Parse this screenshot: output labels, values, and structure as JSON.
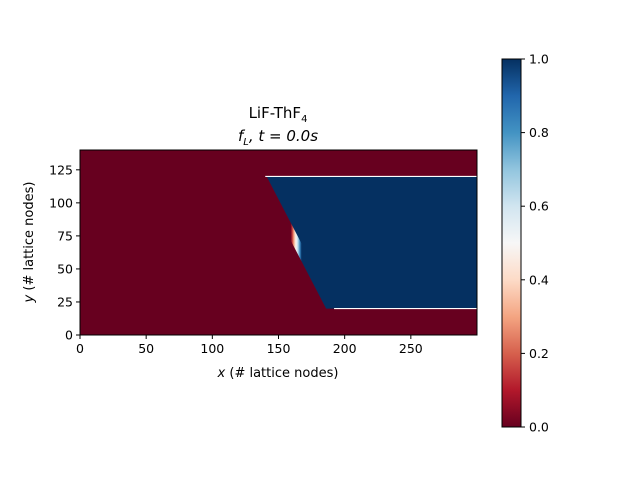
{
  "chart_data": {
    "type": "heatmap",
    "title_line1_main": "LiF-ThF",
    "title_line1_sub": "4",
    "title_line2_f": "f",
    "title_line2_sub": "L",
    "title_line2_rest": ", t = 0.0s",
    "xlabel_var": "x",
    "xlabel_rest": " (# lattice nodes)",
    "ylabel_var": "y",
    "ylabel_rest": " (# lattice nodes)",
    "xlim": [
      0,
      300
    ],
    "ylim": [
      0,
      140
    ],
    "xticks": [
      0,
      50,
      100,
      150,
      200,
      250
    ],
    "yticks": [
      0,
      25,
      50,
      75,
      100,
      125
    ],
    "field": {
      "background_value": 0.0,
      "liquid_value": 1.0,
      "region_y_range": [
        20,
        120
      ],
      "region_right_x": 300,
      "interface_top": [
        140,
        120
      ],
      "interface_bottom": [
        192,
        20
      ],
      "interface_width": 6
    },
    "colormap": "RdBu",
    "colorbar": {
      "range": [
        0.0,
        1.0
      ],
      "ticks": [
        "0.0",
        "0.2",
        "0.4",
        "0.6",
        "0.8",
        "1.0"
      ],
      "stops": [
        "#67001f",
        "#b2182b",
        "#d6604d",
        "#f4a582",
        "#fddbc7",
        "#f7f7f7",
        "#d1e5f0",
        "#92c5de",
        "#4393c3",
        "#2166ac",
        "#053061"
      ]
    }
  }
}
